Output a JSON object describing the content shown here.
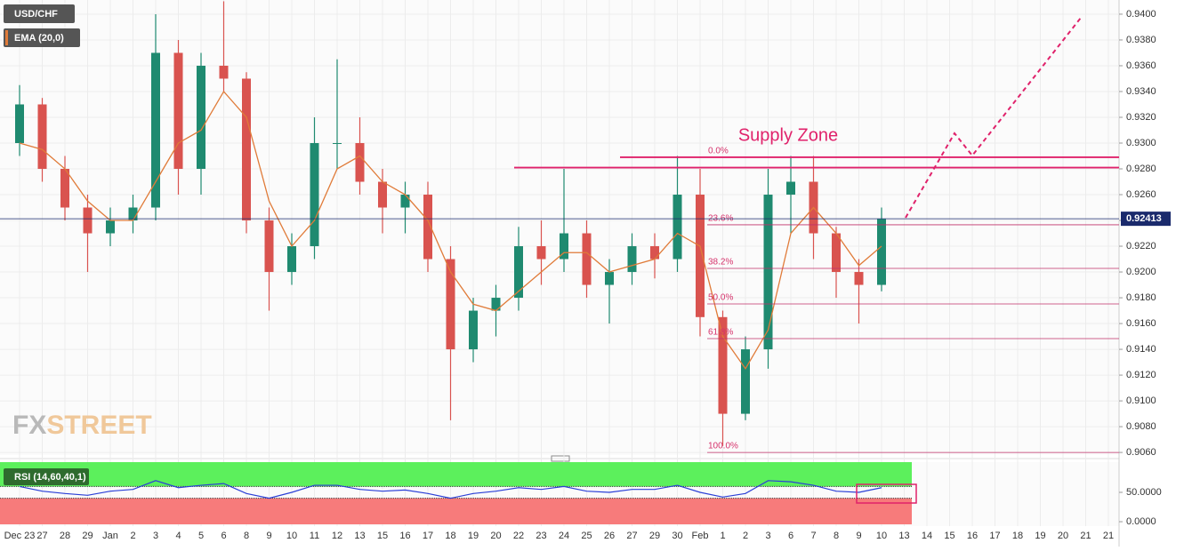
{
  "chart_data": [
    {
      "type": "candlestick",
      "title": "USD/CHF",
      "categories": [
        "Dec 23",
        "27",
        "28",
        "29",
        "Jan",
        "2",
        "3",
        "4",
        "5",
        "6",
        "8",
        "9",
        "10",
        "11",
        "12",
        "13",
        "15",
        "16",
        "17",
        "18",
        "19",
        "20",
        "22",
        "23",
        "24",
        "25",
        "26",
        "27",
        "29",
        "30",
        "Feb",
        "1",
        "2",
        "3",
        "6",
        "7",
        "8",
        "9",
        "10",
        "13",
        "14",
        "15",
        "16",
        "17",
        "18",
        "19",
        "20",
        "21",
        "21"
      ],
      "open": [
        0.93,
        0.933,
        0.928,
        0.925,
        0.923,
        0.924,
        0.925,
        0.937,
        0.928,
        0.936,
        0.935,
        0.924,
        0.92,
        0.922,
        0.93,
        0.93,
        0.927,
        0.925,
        0.926,
        0.921,
        0.914,
        0.917,
        0.918,
        0.922,
        0.921,
        0.923,
        0.919,
        0.92,
        0.922,
        0.921,
        0.926,
        0.9165,
        0.909,
        0.914,
        0.926,
        0.927,
        0.923,
        0.92,
        0.919,
        null,
        null,
        null,
        null,
        null,
        null,
        null,
        null,
        null,
        null
      ],
      "high": [
        0.9345,
        0.9335,
        0.929,
        0.926,
        0.925,
        0.926,
        0.94,
        0.938,
        0.937,
        0.941,
        0.9355,
        0.925,
        0.923,
        0.932,
        0.9365,
        0.932,
        0.928,
        0.927,
        0.927,
        0.922,
        0.918,
        0.919,
        0.9235,
        0.924,
        0.928,
        0.924,
        0.921,
        0.923,
        0.923,
        0.929,
        0.928,
        0.917,
        0.915,
        0.928,
        0.929,
        0.929,
        0.9235,
        0.921,
        0.925,
        null,
        null,
        null,
        null,
        null,
        null,
        null,
        null,
        null,
        null
      ],
      "low": [
        0.929,
        0.927,
        0.924,
        0.92,
        0.922,
        0.923,
        0.924,
        0.926,
        0.926,
        0.934,
        0.923,
        0.917,
        0.919,
        0.921,
        0.928,
        0.926,
        0.923,
        0.923,
        0.92,
        0.9085,
        0.913,
        0.915,
        0.917,
        0.919,
        0.92,
        0.918,
        0.916,
        0.919,
        0.9195,
        0.92,
        0.915,
        0.9065,
        0.9085,
        0.9125,
        0.923,
        0.921,
        0.918,
        0.916,
        0.9185,
        null,
        null,
        null,
        null,
        null,
        null,
        null,
        null,
        null,
        null
      ],
      "close": [
        0.933,
        0.928,
        0.925,
        0.923,
        0.924,
        0.925,
        0.937,
        0.928,
        0.936,
        0.935,
        0.924,
        0.92,
        0.922,
        0.93,
        0.93,
        0.927,
        0.925,
        0.926,
        0.921,
        0.914,
        0.917,
        0.918,
        0.922,
        0.921,
        0.923,
        0.919,
        0.92,
        0.922,
        0.921,
        0.926,
        0.9165,
        0.909,
        0.914,
        0.926,
        0.927,
        0.923,
        0.92,
        0.919,
        0.9241,
        null,
        null,
        null,
        null,
        null,
        null,
        null,
        null,
        null,
        null
      ],
      "up_color": "#1f8a70",
      "down_color": "#d9534f",
      "ema": {
        "name": "EMA (20,0)",
        "color": "#e07b39",
        "values": [
          0.93,
          0.9295,
          0.928,
          0.9255,
          0.924,
          0.924,
          0.927,
          0.93,
          0.931,
          0.934,
          0.932,
          0.9255,
          0.922,
          0.924,
          0.928,
          0.929,
          0.927,
          0.926,
          0.924,
          0.92,
          0.9175,
          0.917,
          0.9185,
          0.92,
          0.9215,
          0.9215,
          0.92,
          0.9205,
          0.921,
          0.923,
          0.922,
          0.915,
          0.9125,
          0.9155,
          0.923,
          0.925,
          0.923,
          0.9205,
          0.922,
          null,
          null,
          null,
          null,
          null,
          null,
          null,
          null,
          null,
          null
        ]
      },
      "ylim": [
        0.9058,
        0.9411
      ],
      "yticks": [
        {
          "value": 0.906,
          "label": "0.9060"
        },
        {
          "value": 0.908,
          "label": "0.9080"
        },
        {
          "value": 0.91,
          "label": "0.9100"
        },
        {
          "value": 0.912,
          "label": "0.9120"
        },
        {
          "value": 0.914,
          "label": "0.9140"
        },
        {
          "value": 0.916,
          "label": "0.9160"
        },
        {
          "value": 0.918,
          "label": "0.9180"
        },
        {
          "value": 0.92,
          "label": "0.9200"
        },
        {
          "value": 0.922,
          "label": "0.9220"
        },
        {
          "value": 0.924,
          "label": "0.9240"
        },
        {
          "value": 0.926,
          "label": "0.9260"
        },
        {
          "value": 0.928,
          "label": "0.9280"
        },
        {
          "value": 0.93,
          "label": "0.9300"
        },
        {
          "value": 0.932,
          "label": "0.9320"
        },
        {
          "value": 0.934,
          "label": "0.9340"
        },
        {
          "value": 0.936,
          "label": "0.9360"
        },
        {
          "value": 0.938,
          "label": "0.9380"
        },
        {
          "value": 0.94,
          "label": "0.9400"
        }
      ],
      "grid": true,
      "last_price": 0.92413,
      "fibonacci": [
        {
          "label": "0.0%",
          "value": 0.9289
        },
        {
          "label": "23.6%",
          "value": 0.92366
        },
        {
          "label": "38.2%",
          "value": 0.92028
        },
        {
          "label": "50.0%",
          "value": 0.91752
        },
        {
          "label": "61.8%",
          "value": 0.91483
        },
        {
          "label": "100.0%",
          "value": 0.906
        }
      ],
      "supply_zone": {
        "label": "Supply Zone",
        "values": [
          0.9289,
          0.9281
        ]
      },
      "watermark": [
        "FX",
        "STREET"
      ]
    },
    {
      "type": "line",
      "title": "RSI (14,60,40,1)",
      "series": [
        {
          "name": "RSI",
          "color": "#2b3fd6",
          "values": [
            60,
            52,
            48,
            45,
            52,
            55,
            70,
            58,
            62,
            65,
            48,
            40,
            50,
            62,
            62,
            55,
            52,
            54,
            48,
            40,
            48,
            52,
            58,
            55,
            60,
            52,
            50,
            55,
            55,
            62,
            50,
            42,
            48,
            70,
            68,
            62,
            52,
            50,
            58,
            null,
            null,
            null,
            null,
            null,
            null,
            null,
            null,
            null,
            null
          ]
        }
      ],
      "upper_band": 60,
      "lower_band": 40,
      "ylim": [
        -4.5,
        101.5
      ],
      "yticks": [
        {
          "value": 0,
          "label": "0.0000"
        },
        {
          "value": 50,
          "label": "50.0000"
        }
      ]
    }
  ]
}
